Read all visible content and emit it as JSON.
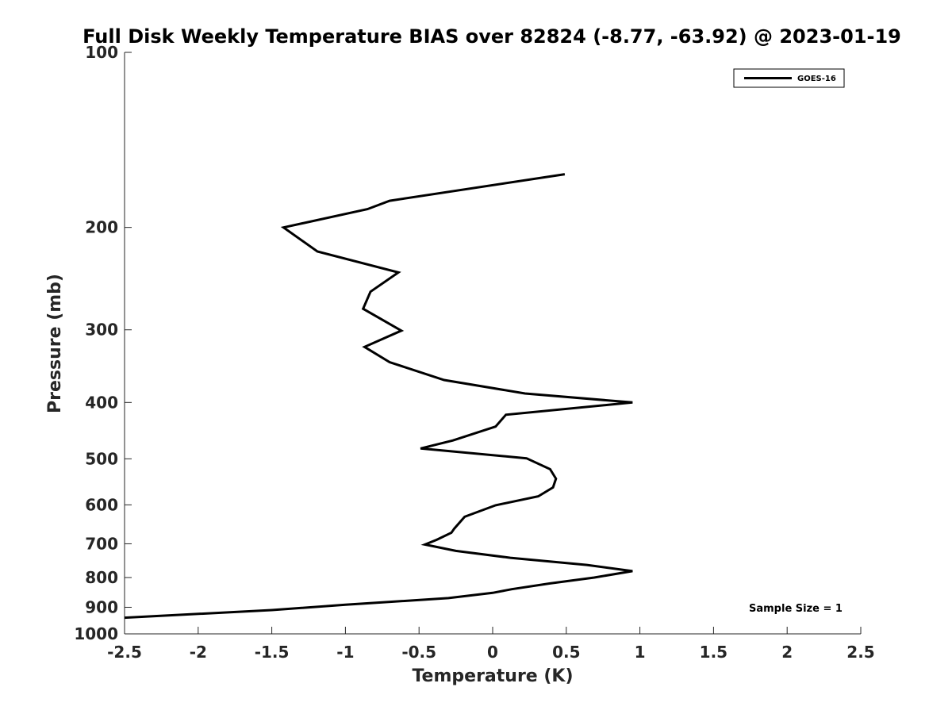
{
  "chart_data": {
    "type": "line",
    "title": "Full Disk Weekly Temperature BIAS over 82824 (-8.77, -63.92) @ 2023-01-19",
    "xlabel": "Temperature (K)",
    "ylabel": "Pressure (mb)",
    "xlim": [
      -2.5,
      2.5
    ],
    "ylim": [
      100,
      1000
    ],
    "y_scale": "log",
    "y_direction": "reversed",
    "x_ticks": [
      -2.5,
      -2,
      -1.5,
      -1,
      -0.5,
      0,
      0.5,
      1,
      1.5,
      2,
      2.5
    ],
    "x_tick_labels": [
      "-2.5",
      "-2",
      "-1.5",
      "-1",
      "-0.5",
      "0",
      "0.5",
      "1",
      "1.5",
      "2",
      "2.5"
    ],
    "y_ticks": [
      100,
      200,
      300,
      400,
      500,
      600,
      700,
      800,
      900,
      1000
    ],
    "y_tick_labels": [
      "100",
      "200",
      "300",
      "400",
      "500",
      "600",
      "700",
      "800",
      "900",
      "1000"
    ],
    "grid": false,
    "legend_position": "top-right",
    "annotation": "Sample Size = 1",
    "series": [
      {
        "name": "GOES-16",
        "color": "#000000",
        "points": [
          {
            "x": 0.49,
            "y": 162
          },
          {
            "x": -0.7,
            "y": 180
          },
          {
            "x": -0.85,
            "y": 186
          },
          {
            "x": -1.42,
            "y": 200
          },
          {
            "x": -1.19,
            "y": 220
          },
          {
            "x": -0.64,
            "y": 239
          },
          {
            "x": -0.83,
            "y": 258
          },
          {
            "x": -0.88,
            "y": 276
          },
          {
            "x": -0.62,
            "y": 301
          },
          {
            "x": -0.87,
            "y": 321
          },
          {
            "x": -0.7,
            "y": 341
          },
          {
            "x": -0.33,
            "y": 366
          },
          {
            "x": 0.22,
            "y": 386
          },
          {
            "x": 0.95,
            "y": 400
          },
          {
            "x": 0.09,
            "y": 420
          },
          {
            "x": 0.02,
            "y": 440
          },
          {
            "x": -0.27,
            "y": 465
          },
          {
            "x": -0.49,
            "y": 480
          },
          {
            "x": 0.23,
            "y": 499
          },
          {
            "x": 0.39,
            "y": 521
          },
          {
            "x": 0.43,
            "y": 541
          },
          {
            "x": 0.41,
            "y": 560
          },
          {
            "x": 0.31,
            "y": 580
          },
          {
            "x": 0.02,
            "y": 601
          },
          {
            "x": -0.19,
            "y": 629
          },
          {
            "x": -0.26,
            "y": 659
          },
          {
            "x": -0.28,
            "y": 670
          },
          {
            "x": -0.38,
            "y": 689
          },
          {
            "x": -0.46,
            "y": 702
          },
          {
            "x": -0.25,
            "y": 720
          },
          {
            "x": 0.12,
            "y": 740
          },
          {
            "x": 0.64,
            "y": 761
          },
          {
            "x": 0.95,
            "y": 780
          },
          {
            "x": 0.69,
            "y": 800
          },
          {
            "x": 0.39,
            "y": 819
          },
          {
            "x": 0.13,
            "y": 838
          },
          {
            "x": 0.0,
            "y": 850
          },
          {
            "x": -0.3,
            "y": 868
          },
          {
            "x": -1.0,
            "y": 891
          },
          {
            "x": -1.5,
            "y": 910
          },
          {
            "x": -2.5,
            "y": 938
          }
        ]
      }
    ]
  }
}
